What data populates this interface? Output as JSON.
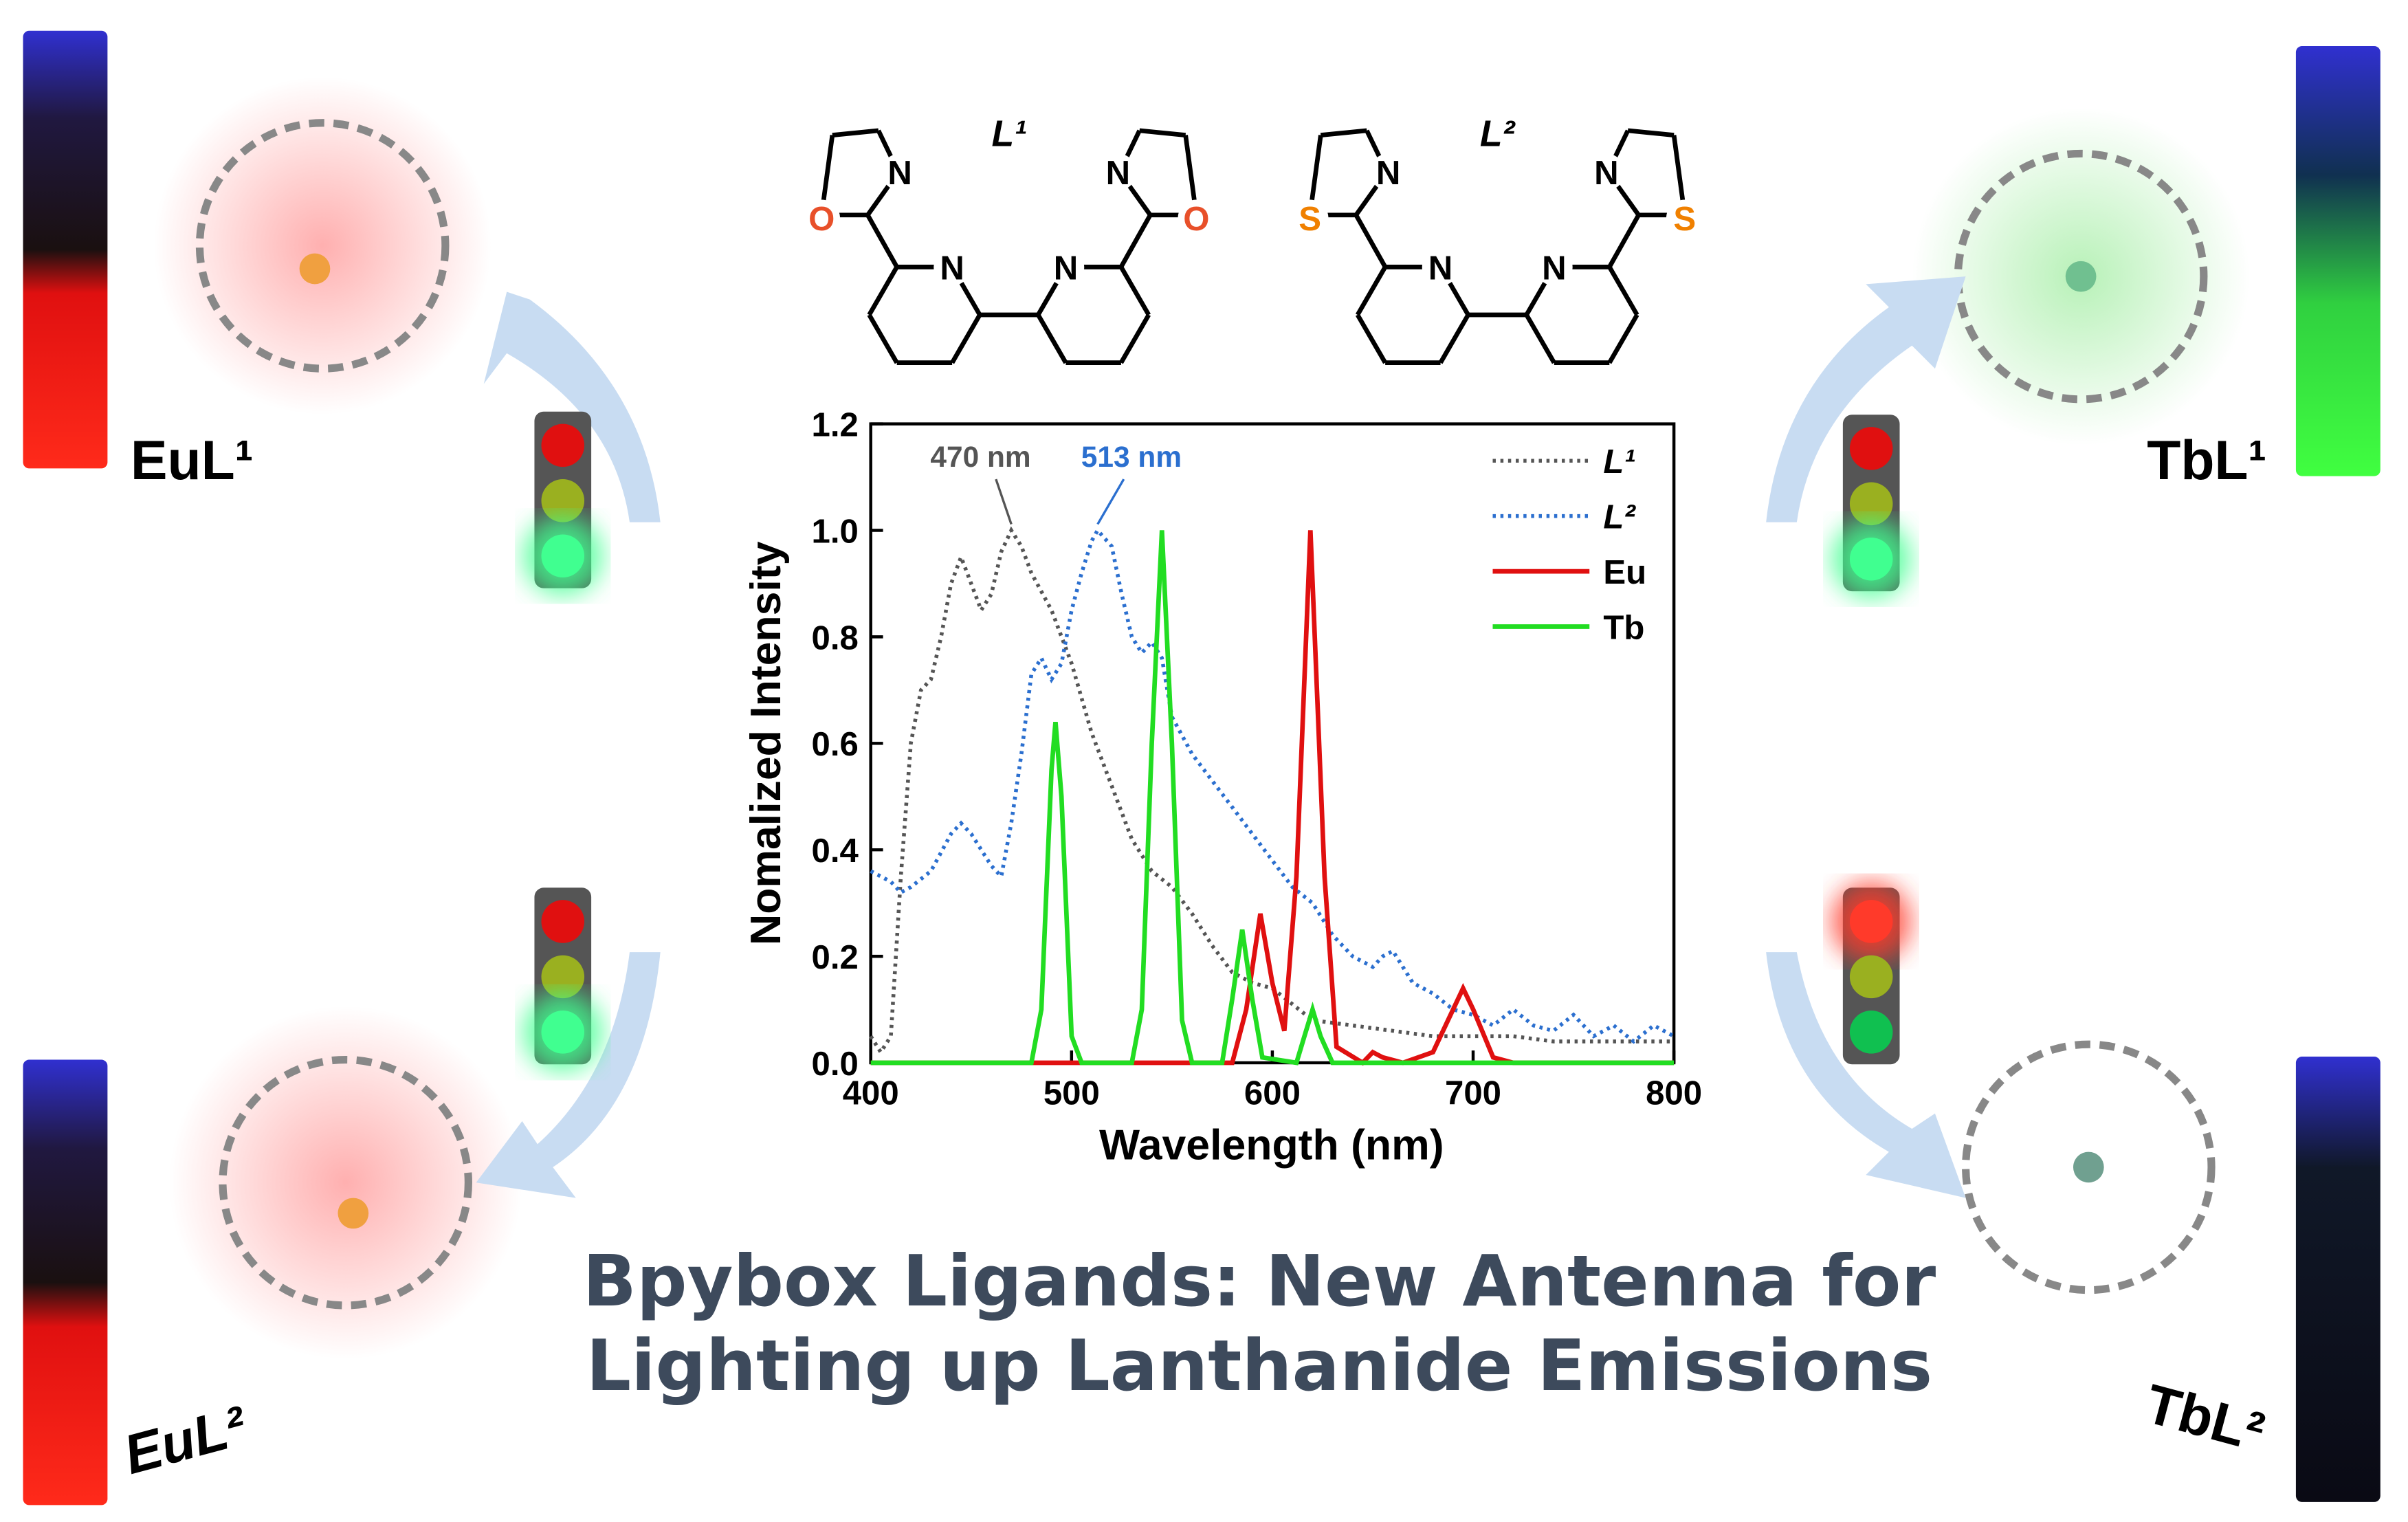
{
  "chart_data": {
    "type": "line",
    "xlabel": "Wavelength (nm)",
    "ylabel": "Nomalized Intensity",
    "xlim": [
      400,
      800
    ],
    "xticks": [
      400,
      500,
      600,
      700,
      800
    ],
    "ylim": [
      0,
      1.2
    ],
    "yticks": [
      {
        "value": 0,
        "label": "0.0"
      },
      0.2,
      0.4,
      0.6,
      0.8,
      {
        "value": 1,
        "label": "1.0"
      },
      1.2
    ],
    "legend": "upper right",
    "annotations": [
      {
        "text": "470 nm",
        "x": 470,
        "y": 1.0,
        "color": "#555555"
      },
      {
        "text": "513 nm",
        "x": 513,
        "y": 1.0,
        "color": "#2b6fcf"
      }
    ],
    "series": [
      {
        "name": "L¹",
        "color": "#555555",
        "style": "dotted",
        "x": [
          400,
          405,
          410,
          415,
          420,
          425,
          430,
          435,
          440,
          445,
          450,
          455,
          460,
          465,
          470,
          475,
          480,
          490,
          500,
          510,
          520,
          530,
          540,
          550,
          560,
          570,
          580,
          590,
          600,
          620,
          640,
          660,
          680,
          700,
          720,
          740,
          760,
          780,
          800
        ],
        "values": [
          0.05,
          0.02,
          0.05,
          0.35,
          0.6,
          0.7,
          0.72,
          0.8,
          0.9,
          0.95,
          0.9,
          0.85,
          0.88,
          0.96,
          1.0,
          0.97,
          0.92,
          0.85,
          0.75,
          0.62,
          0.52,
          0.42,
          0.36,
          0.33,
          0.28,
          0.22,
          0.17,
          0.15,
          0.14,
          0.08,
          0.07,
          0.06,
          0.05,
          0.05,
          0.05,
          0.04,
          0.04,
          0.04,
          0.04
        ]
      },
      {
        "name": "L²",
        "color": "#2b6fcf",
        "style": "dotted",
        "x": [
          400,
          410,
          415,
          420,
          430,
          440,
          445,
          450,
          460,
          465,
          470,
          475,
          480,
          485,
          490,
          495,
          500,
          505,
          510,
          513,
          520,
          525,
          530,
          535,
          540,
          545,
          550,
          560,
          570,
          580,
          590,
          600,
          610,
          620,
          630,
          640,
          650,
          655,
          660,
          665,
          670,
          680,
          690,
          700,
          710,
          720,
          730,
          740,
          750,
          760,
          770,
          780,
          790,
          800
        ],
        "values": [
          0.36,
          0.34,
          0.32,
          0.33,
          0.36,
          0.43,
          0.45,
          0.43,
          0.37,
          0.35,
          0.45,
          0.58,
          0.73,
          0.76,
          0.72,
          0.75,
          0.85,
          0.92,
          0.98,
          1.0,
          0.97,
          0.88,
          0.8,
          0.77,
          0.79,
          0.76,
          0.65,
          0.58,
          0.53,
          0.48,
          0.43,
          0.38,
          0.33,
          0.3,
          0.24,
          0.2,
          0.18,
          0.2,
          0.21,
          0.18,
          0.15,
          0.13,
          0.1,
          0.09,
          0.07,
          0.1,
          0.07,
          0.06,
          0.09,
          0.05,
          0.07,
          0.04,
          0.07,
          0.05
        ]
      },
      {
        "name": "Eu",
        "color": "#e01010",
        "style": "solid",
        "x": [
          400,
          580,
          587,
          594,
          600,
          606,
          612,
          619,
          626,
          632,
          645,
          650,
          655,
          665,
          680,
          690,
          695,
          700,
          710,
          720,
          800
        ],
        "values": [
          0,
          0,
          0.1,
          0.28,
          0.15,
          0.06,
          0.35,
          1.0,
          0.35,
          0.03,
          0,
          0.02,
          0.01,
          0,
          0.02,
          0.1,
          0.14,
          0.1,
          0.01,
          0,
          0
        ]
      },
      {
        "name": "Tb",
        "color": "#22dd22",
        "style": "solid",
        "x": [
          400,
          480,
          485,
          490,
          492,
          495,
          500,
          505,
          530,
          535,
          540,
          545,
          550,
          555,
          560,
          575,
          580,
          585,
          590,
          595,
          612,
          616,
          620,
          624,
          630,
          800
        ],
        "values": [
          0,
          0,
          0.1,
          0.55,
          0.64,
          0.5,
          0.05,
          0,
          0,
          0.1,
          0.6,
          1.0,
          0.6,
          0.08,
          0,
          0,
          0.12,
          0.25,
          0.12,
          0.01,
          0,
          0.05,
          0.1,
          0.05,
          0,
          0
        ]
      }
    ]
  },
  "ligands": [
    {
      "label": "L¹",
      "atoms": [
        "O",
        "N",
        "N",
        "N",
        "N",
        "O"
      ]
    },
    {
      "label": "L²",
      "atoms": [
        "S",
        "N",
        "N",
        "N",
        "N",
        "S"
      ]
    }
  ],
  "complexes": [
    "EuL¹",
    "TbL¹",
    "EuL²",
    "TbL²"
  ],
  "title_lines": [
    "Bpybox Ligands: New Antenna for",
    "Lighting up Lanthanide Emissions"
  ]
}
